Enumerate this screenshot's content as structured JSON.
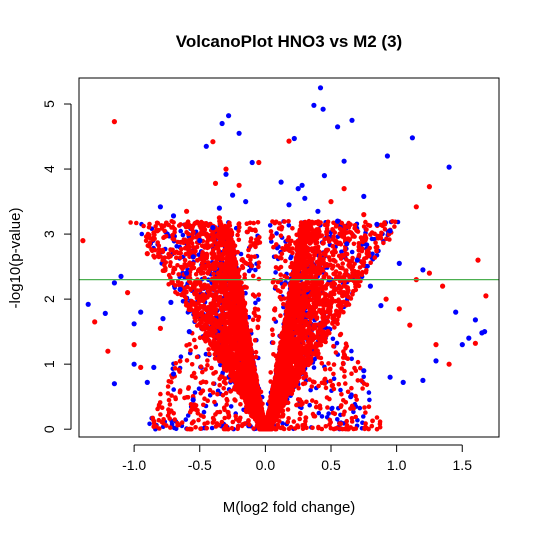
{
  "chart_data": {
    "type": "scatter",
    "title": "VolcanoPlot HNO3 vs M2 (3)",
    "xlabel": "M(log2 fold change)",
    "ylabel": "-log10(p-value)",
    "xlim": [
      -1.42,
      1.78
    ],
    "ylim": [
      -0.12,
      5.4
    ],
    "x_ticks": [
      -1.0,
      -0.5,
      0.0,
      0.5,
      1.0,
      1.5
    ],
    "x_tick_labels": [
      "-1.0",
      "-0.5",
      "0.0",
      "0.5",
      "1.0",
      "1.5"
    ],
    "y_ticks": [
      0,
      1,
      2,
      3,
      4,
      5
    ],
    "y_tick_labels": [
      "0",
      "1",
      "2",
      "3",
      "4",
      "5"
    ],
    "threshold_line": {
      "y": 2.3,
      "color": "#4caf50"
    },
    "grid": false,
    "legend": "none",
    "series_colors": {
      "blue": "#0000ff",
      "red": "#ff0000"
    },
    "series": [
      {
        "color": "blue",
        "points": [
          [
            0.42,
            5.25
          ],
          [
            0.37,
            4.98
          ],
          [
            0.44,
            4.92
          ],
          [
            0.55,
            4.65
          ],
          [
            0.66,
            4.75
          ],
          [
            1.12,
            4.48
          ],
          [
            -0.28,
            4.82
          ],
          [
            -0.33,
            4.7
          ],
          [
            -0.45,
            4.35
          ],
          [
            -0.2,
            4.55
          ],
          [
            0.22,
            4.47
          ],
          [
            -0.1,
            4.1
          ],
          [
            -0.3,
            3.92
          ],
          [
            0.45,
            3.9
          ],
          [
            0.6,
            4.12
          ],
          [
            0.93,
            4.2
          ],
          [
            1.4,
            4.03
          ],
          [
            0.75,
            3.58
          ],
          [
            -0.8,
            3.42
          ],
          [
            -0.7,
            3.28
          ],
          [
            -1.1,
            2.35
          ],
          [
            -1.15,
            2.25
          ],
          [
            -1.35,
            1.92
          ],
          [
            -1.22,
            1.78
          ],
          [
            -1.0,
            1.62
          ],
          [
            -0.95,
            1.8
          ],
          [
            0.95,
            3.05
          ],
          [
            0.85,
            3.15
          ],
          [
            1.02,
            2.55
          ],
          [
            1.2,
            2.45
          ],
          [
            1.45,
            1.8
          ],
          [
            1.6,
            1.68
          ],
          [
            1.65,
            1.48
          ],
          [
            1.67,
            1.5
          ],
          [
            1.5,
            1.3
          ],
          [
            1.3,
            1.05
          ],
          [
            1.55,
            1.4
          ],
          [
            1.2,
            0.75
          ],
          [
            1.05,
            0.72
          ],
          [
            0.95,
            0.8
          ],
          [
            -1.15,
            0.7
          ],
          [
            -0.9,
            0.72
          ],
          [
            -0.85,
            0.95
          ],
          [
            -1.0,
            1.0
          ],
          [
            -0.6,
            2.4
          ],
          [
            -0.55,
            2.65
          ],
          [
            -0.5,
            2.9
          ],
          [
            -0.4,
            3.1
          ],
          [
            0.55,
            3.2
          ],
          [
            0.4,
            3.35
          ],
          [
            0.3,
            3.55
          ],
          [
            0.28,
            3.75
          ],
          [
            0.25,
            3.7
          ],
          [
            -0.35,
            3.4
          ],
          [
            -0.25,
            3.6
          ],
          [
            -0.15,
            3.5
          ],
          [
            0.12,
            3.8
          ],
          [
            0.18,
            3.45
          ],
          [
            0.62,
            2.85
          ],
          [
            0.7,
            2.6
          ],
          [
            0.8,
            2.2
          ],
          [
            0.88,
            1.9
          ],
          [
            -0.65,
            2.15
          ],
          [
            -0.72,
            1.95
          ],
          [
            -0.78,
            1.7
          ],
          [
            -0.58,
            1.5
          ],
          [
            0.65,
            0.5
          ],
          [
            -0.55,
            0.45
          ],
          [
            0.75,
            0.9
          ],
          [
            -0.7,
            0.85
          ]
        ]
      },
      {
        "color": "red",
        "points": [
          [
            -1.15,
            4.73
          ],
          [
            -0.4,
            4.42
          ],
          [
            0.18,
            4.43
          ],
          [
            -0.3,
            4.0
          ],
          [
            -0.05,
            4.1
          ],
          [
            -0.38,
            3.78
          ],
          [
            -1.39,
            2.9
          ],
          [
            1.25,
            3.73
          ],
          [
            1.15,
            3.42
          ],
          [
            0.75,
            3.3
          ],
          [
            1.62,
            2.6
          ],
          [
            1.68,
            2.05
          ],
          [
            1.6,
            1.32
          ],
          [
            1.25,
            2.4
          ],
          [
            1.35,
            2.2
          ],
          [
            1.15,
            2.3
          ],
          [
            0.92,
            2.0
          ],
          [
            1.02,
            1.85
          ],
          [
            1.1,
            1.6
          ],
          [
            1.3,
            1.3
          ],
          [
            1.4,
            1.0
          ],
          [
            -0.9,
            2.7
          ],
          [
            -1.05,
            2.1
          ],
          [
            -1.2,
            1.2
          ],
          [
            -1.3,
            1.65
          ],
          [
            -1.0,
            1.3
          ],
          [
            -0.95,
            0.95
          ],
          [
            -0.8,
            1.55
          ],
          [
            -0.6,
            3.35
          ],
          [
            -0.2,
            3.75
          ],
          [
            0.6,
            3.7
          ],
          [
            0.5,
            3.5
          ],
          [
            -0.5,
            3.15
          ],
          [
            0.38,
            3.05
          ],
          [
            -0.35,
            3.25
          ],
          [
            0.85,
            2.8
          ]
        ]
      }
    ]
  }
}
